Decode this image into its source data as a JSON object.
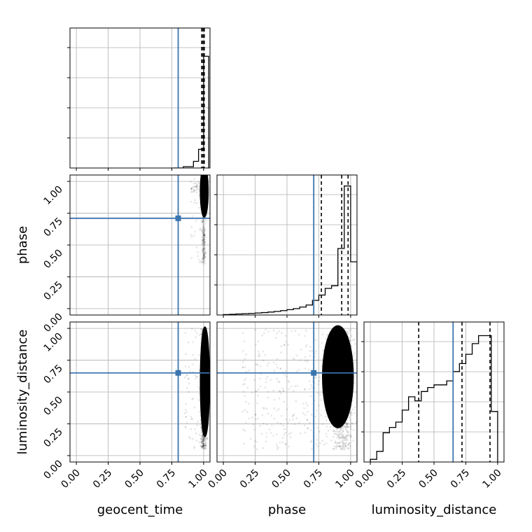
{
  "chart_data": {
    "type": "corner",
    "parameters": [
      "geocent_time",
      "phase",
      "luminosity_distance"
    ],
    "axis_labels": {
      "geocent_time": "geocent_time",
      "phase": "phase",
      "luminosity_distance": "luminosity_distance"
    },
    "tick_values": [
      0.0,
      0.25,
      0.5,
      0.75,
      1.0
    ],
    "tick_labels": [
      "0.00",
      "0.25",
      "0.50",
      "0.75",
      "1.00"
    ],
    "xlim": [
      -0.05,
      1.05
    ],
    "grid": true,
    "colors": {
      "truth": "#3b75af",
      "hist": "#000000",
      "points": "#000000"
    },
    "truths": {
      "geocent_time": 0.8,
      "phase": 0.71,
      "luminosity_distance": 0.65
    },
    "quantiles": {
      "geocent_time": [
        0.985,
        0.995,
        1.005
      ],
      "phase": [
        0.77,
        0.93,
        0.98
      ],
      "luminosity_distance": [
        0.38,
        0.72,
        0.94
      ]
    },
    "histograms": {
      "geocent_time": {
        "bin_edges": [
          0.76,
          0.8,
          0.84,
          0.88,
          0.92,
          0.96,
          1.0,
          1.04
        ],
        "values": [
          0.0,
          0.0,
          0.01,
          0.01,
          0.05,
          0.14,
          0.84
        ]
      },
      "phase": {
        "bin_edges": [
          0.0,
          0.05,
          0.1,
          0.15,
          0.2,
          0.25,
          0.3,
          0.35,
          0.4,
          0.45,
          0.5,
          0.55,
          0.6,
          0.65,
          0.7,
          0.75,
          0.8,
          0.85,
          0.9,
          0.95,
          1.0,
          1.05
        ],
        "values": [
          0.003,
          0.005,
          0.008,
          0.01,
          0.012,
          0.015,
          0.018,
          0.022,
          0.027,
          0.033,
          0.04,
          0.048,
          0.06,
          0.075,
          0.11,
          0.15,
          0.2,
          0.22,
          0.5,
          0.97,
          0.4
        ]
      },
      "luminosity_distance": {
        "bin_edges": [
          0.0,
          0.05,
          0.1,
          0.15,
          0.2,
          0.25,
          0.3,
          0.35,
          0.4,
          0.45,
          0.5,
          0.55,
          0.6,
          0.65,
          0.7,
          0.75,
          0.8,
          0.85,
          0.9,
          0.95,
          1.0
        ],
        "values": [
          0.02,
          0.08,
          0.22,
          0.26,
          0.3,
          0.39,
          0.49,
          0.46,
          0.53,
          0.56,
          0.58,
          0.58,
          0.61,
          0.68,
          0.74,
          0.81,
          0.89,
          0.95,
          0.95,
          0.38
        ]
      }
    }
  }
}
